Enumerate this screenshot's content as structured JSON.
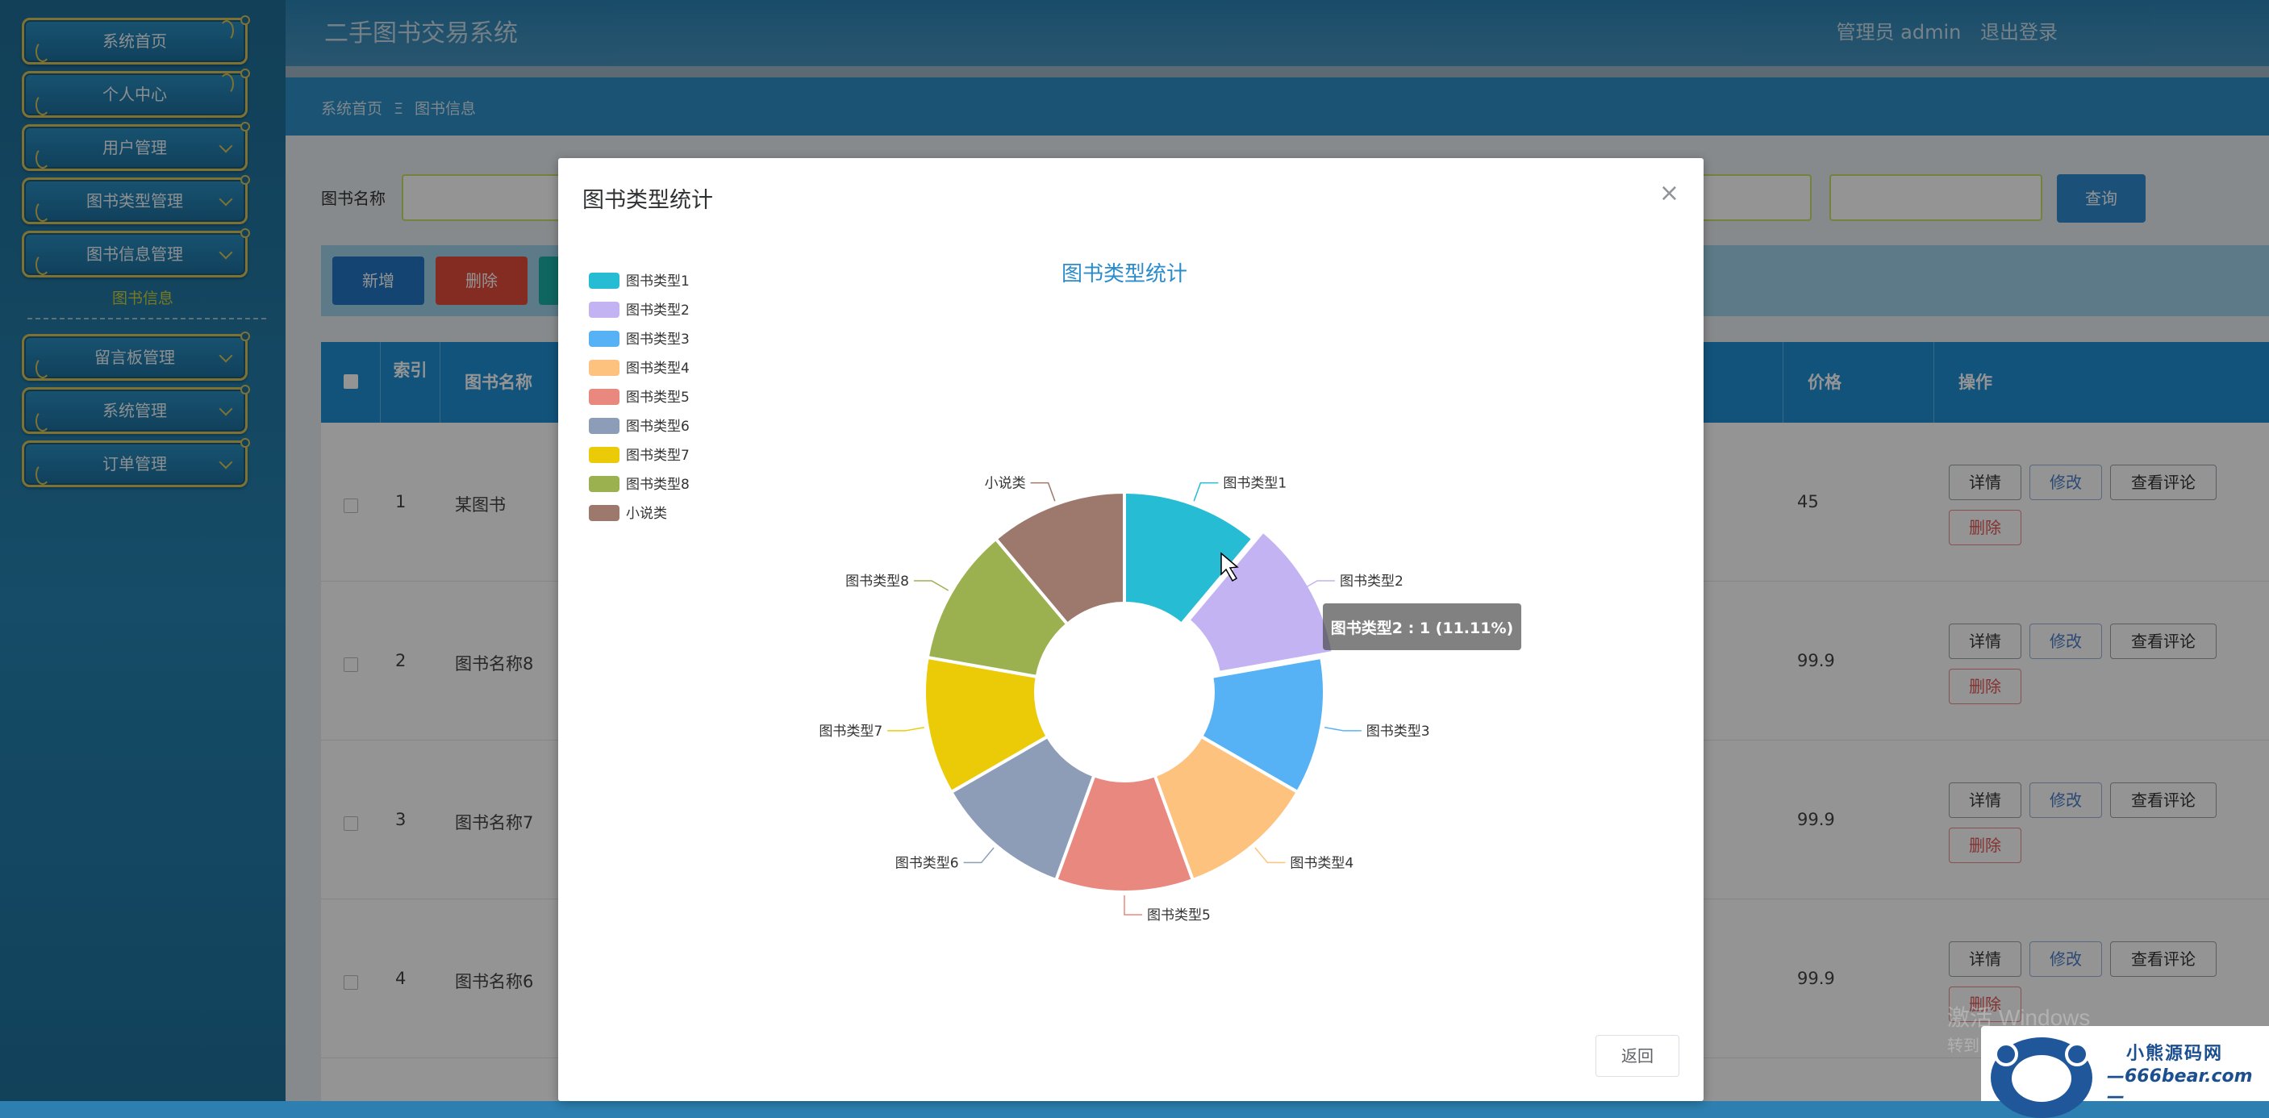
{
  "app": {
    "title": "二手图书交易系统",
    "admin_text": "管理员 admin",
    "logout": "退出登录"
  },
  "sidebar": {
    "items": [
      {
        "label": "系统首页"
      },
      {
        "label": "个人中心"
      },
      {
        "label": "用户管理"
      },
      {
        "label": "图书类型管理"
      },
      {
        "label": "图书信息管理"
      }
    ],
    "active_sub": "图书信息",
    "items2": [
      {
        "label": "留言板管理"
      },
      {
        "label": "系统管理"
      },
      {
        "label": "订单管理"
      }
    ]
  },
  "breadcrumb": {
    "home": "系统首页",
    "sep": "Ξ",
    "current": "图书信息"
  },
  "search": {
    "label": "图书名称",
    "button": "查询"
  },
  "toolbar": {
    "add": "新增",
    "delete": "删除"
  },
  "table": {
    "headers": {
      "index": "索引",
      "name": "图书名称",
      "price": "价格",
      "ops": "操作"
    },
    "rows": [
      {
        "index": "1",
        "name": "某图书",
        "price": "45"
      },
      {
        "index": "2",
        "name": "图书名称8",
        "price": "99.9"
      },
      {
        "index": "3",
        "name": "图书名称7",
        "price": "99.9"
      },
      {
        "index": "4",
        "name": "图书名称6",
        "price": "99.9"
      }
    ],
    "op_labels": {
      "detail": "详情",
      "edit": "修改",
      "comments": "查看评论",
      "delete": "删除"
    }
  },
  "modal": {
    "title": "图书类型统计",
    "close_icon": "close-icon",
    "return_label": "返回",
    "tooltip": "图书类型2 : 1 (11.11%)"
  },
  "chart_data": {
    "type": "pie",
    "variant": "donut",
    "title": "图书类型统计",
    "legend_position": "top-left",
    "series": [
      {
        "name": "图书类型1",
        "value": 1,
        "color": "#26bcd3"
      },
      {
        "name": "图书类型2",
        "value": 1,
        "color": "#c4b3f2"
      },
      {
        "name": "图书类型3",
        "value": 1,
        "color": "#57b2f5"
      },
      {
        "name": "图书类型4",
        "value": 1,
        "color": "#fdc27e"
      },
      {
        "name": "图书类型5",
        "value": 1,
        "color": "#e8887f"
      },
      {
        "name": "图书类型6",
        "value": 1,
        "color": "#8e9db7"
      },
      {
        "name": "图书类型7",
        "value": 1,
        "color": "#ebcb07"
      },
      {
        "name": "图书类型8",
        "value": 1,
        "color": "#9bb04f"
      },
      {
        "name": "小说类",
        "value": 1,
        "color": "#9c786d"
      }
    ],
    "highlighted": "图书类型2"
  },
  "watermark": {
    "windows_line1": "激活 Windows",
    "windows_line2": "转到",
    "logo_text1": "小熊源码网",
    "logo_text2": "—666bear.com—"
  }
}
